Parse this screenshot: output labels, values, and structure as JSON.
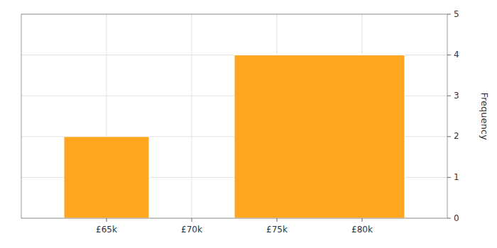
{
  "chart_data": {
    "type": "histogram",
    "bins": [
      62500,
      67500,
      72500,
      82500
    ],
    "values": [
      2,
      0,
      4
    ],
    "color": "#FFA620",
    "ylabel": "Frequency",
    "xlim": [
      60000,
      85000
    ],
    "xticks": [
      {
        "value": 65000,
        "label": "£65k"
      },
      {
        "value": 70000,
        "label": "£70k"
      },
      {
        "value": 75000,
        "label": "£75k"
      },
      {
        "value": 80000,
        "label": "£80k"
      }
    ],
    "ylim": [
      0,
      5
    ],
    "yticks": [
      0,
      1,
      2,
      3,
      4,
      5
    ],
    "grid": true
  }
}
